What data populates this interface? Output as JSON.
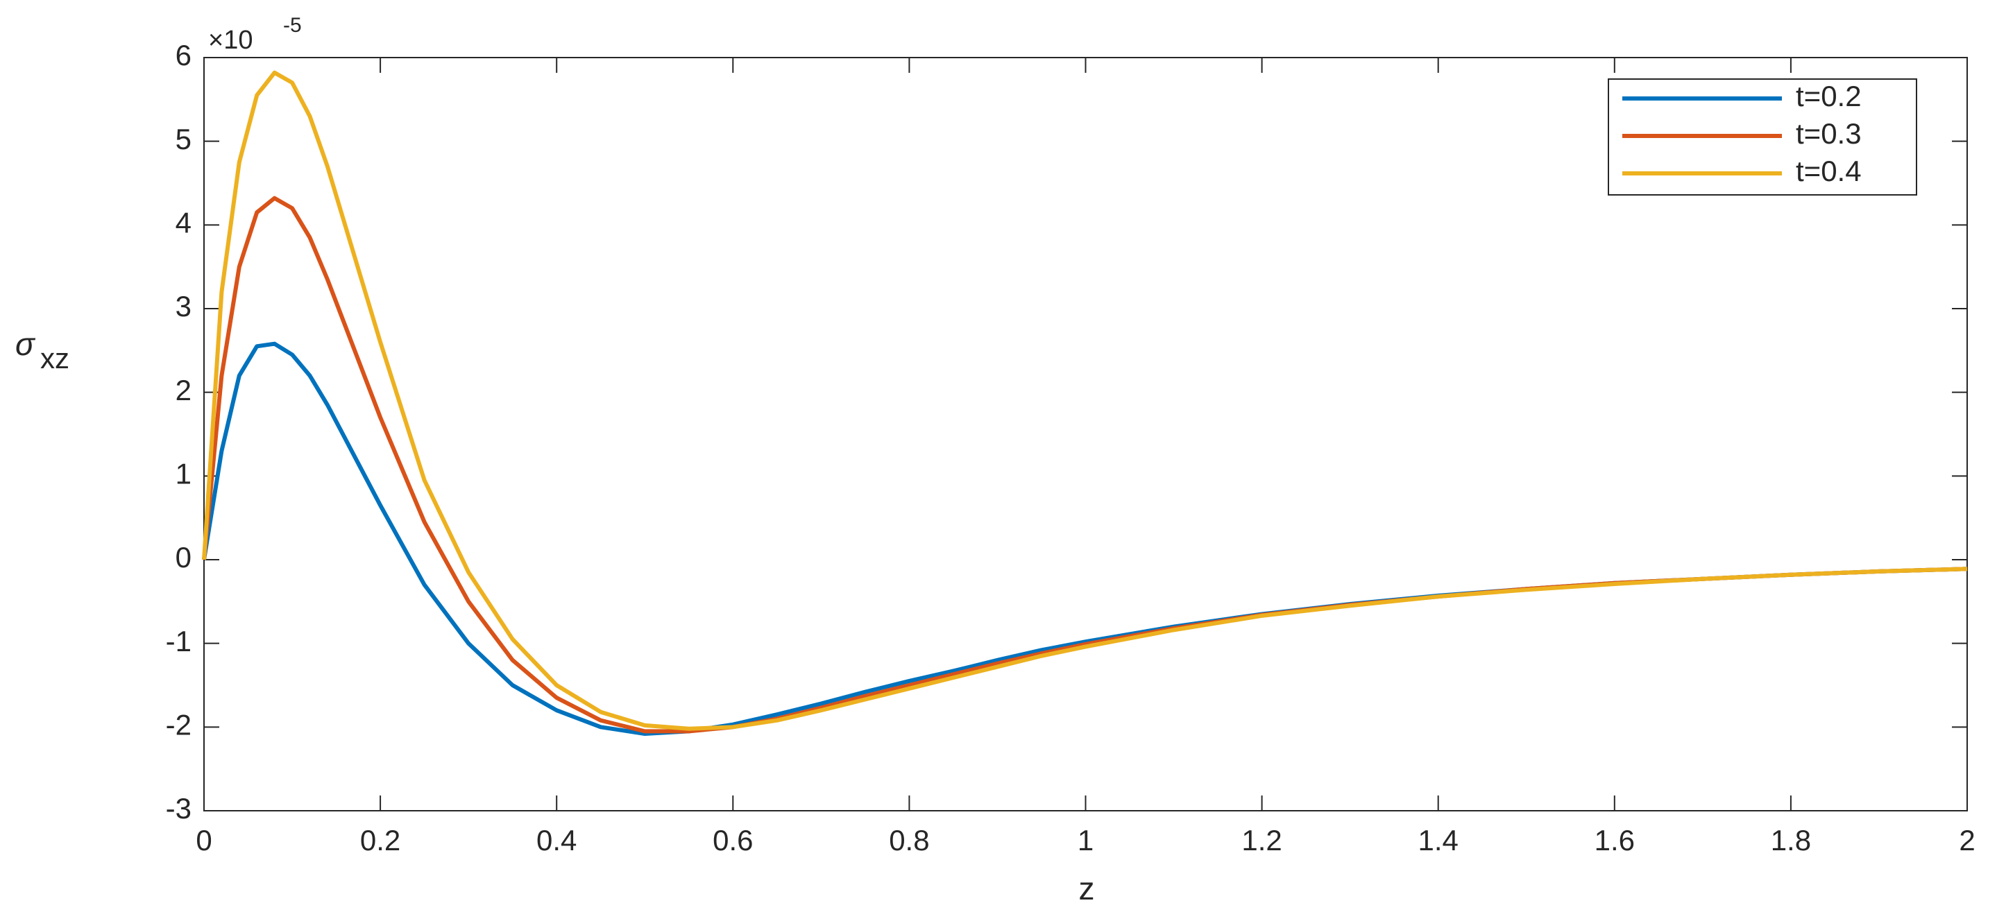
{
  "chart_data": {
    "type": "line",
    "xlabel": "z",
    "ylabel": {
      "symbol": "σ",
      "subscript": "xz"
    },
    "y_multiplier": {
      "base": "×10",
      "exponent": "-5"
    },
    "x": [
      0,
      0.02,
      0.04,
      0.06,
      0.08,
      0.1,
      0.12,
      0.14,
      0.16,
      0.18,
      0.2,
      0.25,
      0.3,
      0.35,
      0.4,
      0.45,
      0.5,
      0.55,
      0.6,
      0.65,
      0.7,
      0.75,
      0.8,
      0.85,
      0.9,
      0.95,
      1.0,
      1.1,
      1.2,
      1.3,
      1.4,
      1.5,
      1.6,
      1.7,
      1.8,
      1.9,
      2.0
    ],
    "series": [
      {
        "name": "t=0.2",
        "color": "#0072BD",
        "values": [
          0,
          1.3,
          2.2,
          2.55,
          2.58,
          2.45,
          2.2,
          1.85,
          1.45,
          1.05,
          0.65,
          -0.3,
          -1.0,
          -1.5,
          -1.8,
          -2.0,
          -2.08,
          -2.05,
          -1.97,
          -1.85,
          -1.72,
          -1.58,
          -1.45,
          -1.33,
          -1.2,
          -1.08,
          -0.98,
          -0.8,
          -0.65,
          -0.53,
          -0.43,
          -0.35,
          -0.28,
          -0.23,
          -0.18,
          -0.14,
          -0.11
        ]
      },
      {
        "name": "t=0.3",
        "color": "#D95319",
        "values": [
          0,
          2.2,
          3.5,
          4.15,
          4.32,
          4.2,
          3.85,
          3.35,
          2.8,
          2.25,
          1.7,
          0.45,
          -0.5,
          -1.2,
          -1.65,
          -1.92,
          -2.05,
          -2.05,
          -2.0,
          -1.9,
          -1.77,
          -1.63,
          -1.5,
          -1.37,
          -1.24,
          -1.12,
          -1.01,
          -0.82,
          -0.66,
          -0.54,
          -0.44,
          -0.35,
          -0.28,
          -0.23,
          -0.18,
          -0.14,
          -0.11
        ]
      },
      {
        "name": "t=0.4",
        "color": "#EDB120",
        "values": [
          0,
          3.2,
          4.75,
          5.55,
          5.82,
          5.7,
          5.3,
          4.7,
          4.0,
          3.3,
          2.6,
          0.95,
          -0.15,
          -0.95,
          -1.5,
          -1.82,
          -1.98,
          -2.02,
          -2.0,
          -1.92,
          -1.8,
          -1.67,
          -1.54,
          -1.41,
          -1.28,
          -1.15,
          -1.04,
          -0.84,
          -0.67,
          -0.55,
          -0.44,
          -0.36,
          -0.29,
          -0.23,
          -0.18,
          -0.14,
          -0.11
        ]
      }
    ],
    "xlim": [
      0,
      2
    ],
    "xticks": [
      0,
      0.2,
      0.4,
      0.6,
      0.8,
      1,
      1.2,
      1.4,
      1.6,
      1.8,
      2
    ],
    "ylim": [
      -3,
      6
    ],
    "yticks": [
      -3,
      -2,
      -1,
      0,
      1,
      2,
      3,
      4,
      5,
      6
    ],
    "grid": false,
    "legend": "northeast"
  }
}
